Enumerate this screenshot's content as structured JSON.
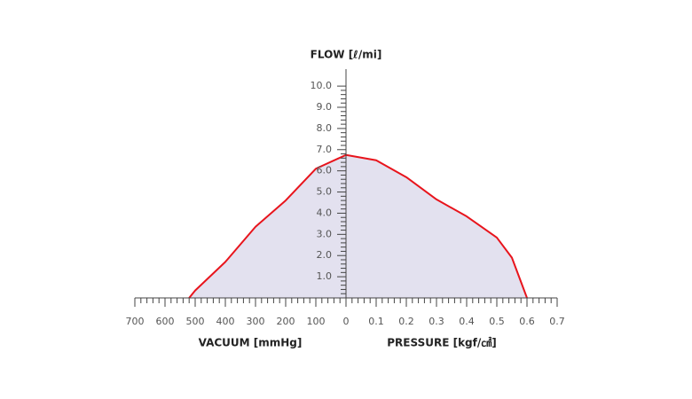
{
  "chart_data": {
    "type": "area",
    "title": "FLOW [ℓ/mi]",
    "x_label_vacuum": "VACUUM [mmHg]",
    "x_label_pressure": "PRESSURE [kgf/㎠]",
    "xlim_vacuum": [
      700,
      0
    ],
    "xticks_vacuum": [
      700,
      600,
      500,
      400,
      300,
      200,
      100
    ],
    "xlim_pressure": [
      0,
      0.7
    ],
    "xticks_pressure": [
      0,
      0.1,
      0.2,
      0.3,
      0.4,
      0.5,
      0.6,
      0.7
    ],
    "ylim": [
      0,
      10.8
    ],
    "yticks": [
      {
        "value": 1,
        "label": "1.0"
      },
      {
        "value": 2,
        "label": "2.0"
      },
      {
        "value": 3,
        "label": "3.0"
      },
      {
        "value": 4,
        "label": "4.0"
      },
      {
        "value": 5,
        "label": "5.0"
      },
      {
        "value": 6,
        "label": "6.0"
      },
      {
        "value": 7,
        "label": "7.0"
      },
      {
        "value": 8,
        "label": "8.0"
      },
      {
        "value": 9,
        "label": "9.0"
      },
      {
        "value": 10,
        "label": "10.0"
      }
    ],
    "fill_color": "#e3e1ef",
    "series": [
      {
        "axis": "vacuum",
        "color": "#e8141c",
        "x": [
          520,
          500,
          400,
          300,
          200,
          100,
          0
        ],
        "values": [
          0,
          0.35,
          1.7,
          3.36,
          4.6,
          6.1,
          6.75
        ]
      },
      {
        "axis": "pressure",
        "color": "#e8141c",
        "x": [
          0,
          0.1,
          0.2,
          0.3,
          0.4,
          0.5,
          0.55,
          0.6
        ],
        "values": [
          6.75,
          6.5,
          5.7,
          4.65,
          3.85,
          2.85,
          1.9,
          0
        ]
      }
    ]
  }
}
